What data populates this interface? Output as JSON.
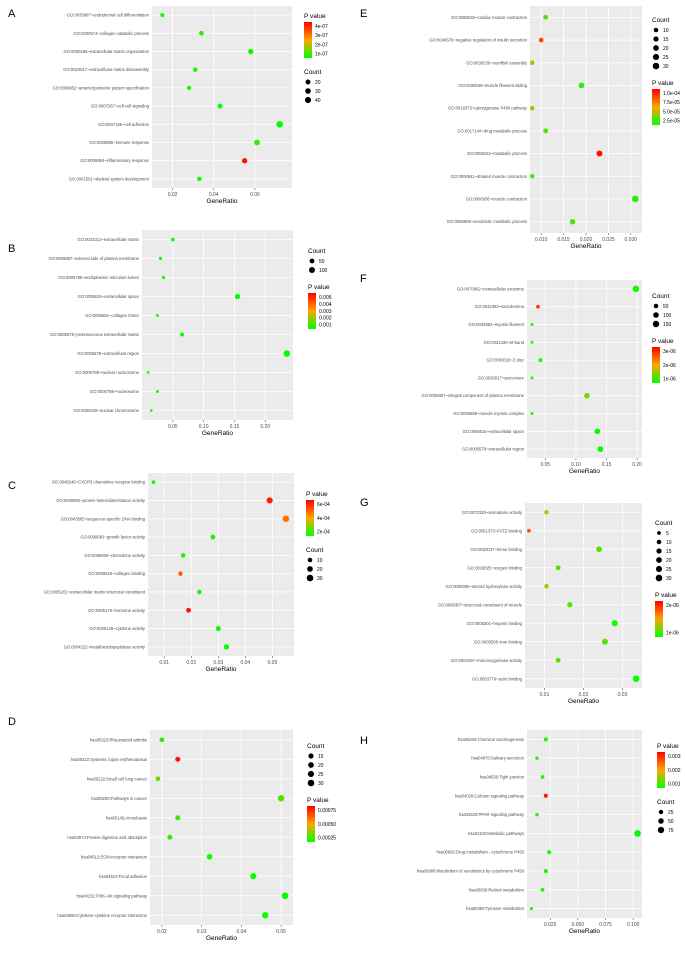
{
  "chart_data": [
    {
      "panel": "A",
      "type": "scatter",
      "categories": [
        "GO:0035987~endodermal cell differentiation",
        "GO:0030574~collagen catabolic process",
        "GO:0030198~extracellular matrix organization",
        "GO:0022617~extracellular matrix disassembly",
        "GO:0009952~anterior/posterior pattern specification",
        "GO:0007267~cell-cell signaling",
        "GO:0007155~cell adhesion",
        "GO:0006955~immune response",
        "GO:0006954~inflammatory response",
        "GO:0001501~skeletal system development"
      ],
      "x": [
        0.015,
        0.034,
        0.058,
        0.031,
        0.028,
        0.043,
        0.072,
        0.061,
        0.055,
        0.033
      ],
      "count": [
        10,
        18,
        25,
        14,
        12,
        20,
        48,
        32,
        26,
        16
      ],
      "pvalue": [
        2e-08,
        5e-08,
        1e-08,
        3e-08,
        2e-08,
        1e-08,
        1e-08,
        5e-08,
        4.2e-07,
        2e-08
      ],
      "xticks": [
        0.02,
        0.04,
        0.06
      ],
      "xlim": [
        0.01,
        0.078
      ],
      "xlabel": "GeneRatio",
      "color_legend": {
        "title": "P value",
        "ticks": [
          "4e-07",
          "3e-07",
          "2e-07",
          "1e-07"
        ],
        "min": 1e-08,
        "max": 4.5e-07
      },
      "size_legend": {
        "title": "Count",
        "values": [
          20,
          30,
          40
        ]
      },
      "legend_order": "color-first"
    },
    {
      "panel": "B",
      "type": "scatter",
      "categories": [
        "GO:0031012~extracellular matrix",
        "GO:0009897~external side of plasma membrane",
        "GO:0005788~endoplasmic reticulum lumen",
        "GO:0005615~extracellular space",
        "GO:0005581~collagen trimer",
        "GO:0005578~proteinaceous extracellular matrix",
        "GO:0005576~extracellular region",
        "GO:0000788~nuclear nucleosome",
        "GO:0000786~nucleosome",
        "GO:0000228~nuclear chromosome"
      ],
      "x": [
        0.05,
        0.03,
        0.035,
        0.155,
        0.025,
        0.065,
        0.235,
        0.01,
        0.025,
        0.015
      ],
      "count": [
        20,
        10,
        12,
        70,
        8,
        25,
        130,
        4,
        8,
        5
      ],
      "pvalue": [
        0.0003,
        0.0004,
        0.0008,
        0.0001,
        0.0012,
        0.0005,
        1e-05,
        0.0006,
        0.0008,
        0.0009
      ],
      "xticks": [
        0.05,
        0.1,
        0.15,
        0.2
      ],
      "xticklabels": [
        "0.05",
        "0.10",
        "0.15",
        "0.20"
      ],
      "xlim": [
        0.0,
        0.245
      ],
      "xlabel": "GeneRatio",
      "color_legend": {
        "title": "P value",
        "ticks": [
          "0.005",
          "0.004",
          "0.003",
          "0.002",
          "0.001"
        ],
        "min": 0.0005,
        "max": 0.0055
      },
      "size_legend": {
        "title": "Count",
        "values": [
          50,
          100
        ]
      },
      "legend_order": "size-first"
    },
    {
      "panel": "C",
      "type": "scatter",
      "categories": [
        "GO:0048248~CXCR3 chemokine receptor binding",
        "GO:0046982~protein heterodimerization activity",
        "GO:0043565~sequence-specific DNA binding",
        "GO:0008083~growth factor activity",
        "GO:0008009~chemokine activity",
        "GO:0005518~collagen binding",
        "GO:0005201~extracellular matrix structural constituent",
        "GO:0005179~hormone activity",
        "GO:0005125~cytokine activity",
        "GO:0004222~metalloendopeptidase activity"
      ],
      "x": [
        0.006,
        0.049,
        0.055,
        0.028,
        0.017,
        0.016,
        0.023,
        0.019,
        0.03,
        0.033
      ],
      "count": [
        5,
        25,
        30,
        12,
        10,
        9,
        10,
        12,
        14,
        16
      ],
      "pvalue": [
        3e-05,
        0.00062,
        0.00045,
        5e-05,
        4e-05,
        0.0005,
        4e-05,
        0.00064,
        3e-05,
        2e-05
      ],
      "xticks": [
        0.01,
        0.02,
        0.03,
        0.04,
        0.05
      ],
      "xlim": [
        0.004,
        0.058
      ],
      "xlabel": "GeneRatio",
      "color_legend": {
        "title": "P value",
        "ticks": [
          "6e-04",
          "4e-04",
          "2e-04"
        ],
        "min": 1e-05,
        "max": 0.00068
      },
      "size_legend": {
        "title": "Count",
        "values": [
          10,
          20,
          30
        ]
      },
      "legend_order": "color-first"
    },
    {
      "panel": "D",
      "type": "scatter",
      "categories": [
        "hsa05323:Rheumatoid arthritis",
        "hsa05322:Systemic lupus erythematosus",
        "hsa05222:Small cell lung cancer",
        "hsa05200:Pathways in cancer",
        "hsa05146:Amoebiasis",
        "hsa04974:Protein digestion and absorption",
        "hsa04512:ECM-receptor interaction",
        "hsa04510:Focal adhesion",
        "hsa04151:PI3K-Akt signaling pathway",
        "hsa04060:Cytokine-cytokine receptor interaction"
      ],
      "x": [
        0.02,
        0.024,
        0.019,
        0.05,
        0.024,
        0.022,
        0.032,
        0.043,
        0.051,
        0.046
      ],
      "count": [
        12,
        14,
        11,
        28,
        14,
        13,
        19,
        25,
        30,
        27
      ],
      "pvalue": [
        0.0001,
        0.00088,
        0.0002,
        0.00015,
        0.0001,
        8e-05,
        3e-05,
        2e-05,
        1e-05,
        3e-05
      ],
      "xticks": [
        0.02,
        0.03,
        0.04,
        0.05
      ],
      "xlim": [
        0.017,
        0.053
      ],
      "xlabel": "GeneRatio",
      "color_legend": {
        "title": "P value",
        "ticks": [
          "0.00075",
          "0.00050",
          "0.00025"
        ],
        "min": 1e-05,
        "max": 0.00092
      },
      "size_legend": {
        "title": "Count",
        "values": [
          15,
          20,
          25,
          30
        ]
      },
      "legend_order": "size-first"
    },
    {
      "panel": "E",
      "type": "scatter",
      "categories": [
        "GO:0060048~cardiac muscle contraction",
        "GO:0046676~negative regulation of insulin secretion",
        "GO:0030239~myofibril assembly",
        "GO:0030049~muscle filament sliding",
        "GO:0019373~epoxygenase P450 pathway",
        "GO:0017144~drug metabolic process",
        "GO:0008152~metabolic process",
        "GO:0006941~striated muscle contraction",
        "GO:0006936~muscle contraction",
        "GO:0006805~xenobiotic metabolic process"
      ],
      "x": [
        0.011,
        0.01,
        0.008,
        0.019,
        0.008,
        0.011,
        0.023,
        0.008,
        0.031,
        0.017
      ],
      "count": [
        12,
        11,
        9,
        20,
        9,
        12,
        23,
        9,
        30,
        17
      ],
      "pvalue": [
        2e-05,
        8e-05,
        3e-05,
        1e-05,
        3e-05,
        2e-05,
        9.5e-05,
        2e-05,
        1e-05,
        2e-05
      ],
      "xticks": [
        0.01,
        0.015,
        0.02,
        0.025,
        0.03
      ],
      "xticklabels": [
        "0.010",
        "0.015",
        "0.020",
        "0.025",
        "0.030"
      ],
      "xlim": [
        0.0075,
        0.0325
      ],
      "xlabel": "GeneRatio",
      "color_legend": {
        "title": "P value",
        "ticks": [
          "1.0e-04",
          "7.5e-05",
          "5.0e-05",
          "2.5e-05"
        ],
        "min": 5e-06,
        "max": 0.0001
      },
      "size_legend": {
        "title": "Count",
        "values": [
          10,
          15,
          20,
          25,
          30
        ]
      },
      "legend_order": "size-first"
    },
    {
      "panel": "F",
      "type": "scatter",
      "categories": [
        "GO:0070062~extracellular exosome",
        "GO:0042383~sarcolemma",
        "GO:0032982~myosin filament",
        "GO:0031430~M band",
        "GO:0030018~Z disc",
        "GO:0030017~sarcomere",
        "GO:0005887~integral component of plasma membrane",
        "GO:0005859~muscle myosin complex",
        "GO:0005615~extracellular space",
        "GO:0005576~extracellular region"
      ],
      "x": [
        0.198,
        0.038,
        0.028,
        0.028,
        0.042,
        0.028,
        0.118,
        0.028,
        0.135,
        0.14
      ],
      "count": [
        160,
        25,
        10,
        10,
        30,
        10,
        90,
        10,
        105,
        110
      ],
      "pvalue": [
        2.5e-07,
        2.7e-06,
        4e-07,
        4e-07,
        2.5e-07,
        4e-07,
        8e-07,
        4e-07,
        1.5e-07,
        1e-07
      ],
      "xticks": [
        0.05,
        0.1,
        0.15,
        0.2
      ],
      "xticklabels": [
        "0.05",
        "0.10",
        "0.15",
        "0.20"
      ],
      "xlim": [
        0.02,
        0.208
      ],
      "xlabel": "GeneRatio",
      "color_legend": {
        "title": "P value",
        "ticks": [
          "3e-06",
          "2e-06",
          "1e-06"
        ],
        "min": 1e-07,
        "max": 3.2e-06
      },
      "size_legend": {
        "title": "Count",
        "values": [
          50,
          100,
          150
        ]
      },
      "legend_order": "size-first"
    },
    {
      "panel": "G",
      "type": "scatter",
      "categories": [
        "GO:0070330~aromatase activity",
        "GO:0051373~FATZ binding",
        "GO:0020037~heme binding",
        "GO:0019825~oxygen binding",
        "GO:0008395~steroid hydroxylase activity",
        "GO:0008307~structural constituent of muscle",
        "GO:0008201~heparin binding",
        "GO:0005506~iron binding",
        "GO:0004497~monooxygenase activity",
        "GO:0003779~actin binding"
      ],
      "x": [
        0.0105,
        0.006,
        0.024,
        0.0135,
        0.0105,
        0.0165,
        0.028,
        0.0255,
        0.0135,
        0.0335
      ],
      "count": [
        10,
        5,
        20,
        12,
        10,
        15,
        25,
        22,
        12,
        30
      ],
      "pvalue": [
        1e-06,
        2e-06,
        5e-07,
        5e-07,
        1e-06,
        5e-07,
        2e-07,
        5e-07,
        5e-07,
        1e-07
      ],
      "xticks": [
        0.01,
        0.02,
        0.03
      ],
      "xlim": [
        0.005,
        0.035
      ],
      "xlabel": "GeneRatio",
      "color_legend": {
        "title": "P value",
        "ticks": [
          "2e-06",
          "1e-06"
        ],
        "min": 1e-07,
        "max": 2.6e-06
      },
      "size_legend": {
        "title": "Count",
        "values": [
          5,
          10,
          15,
          20,
          25,
          30
        ]
      },
      "legend_order": "size-first"
    },
    {
      "panel": "H",
      "type": "scatter",
      "categories": [
        "hsa05204:Chemical carcinogenesis",
        "hsa04970:Salivary secretion",
        "hsa04530:Tight junction",
        "hsa04020:Calcium signaling pathway",
        "hsa03320:PPAR signaling pathway",
        "hsa01100:Metabolic pathways",
        "hsa00982:Drug metabolism - cytochrome P450",
        "hsa00980:Metabolism of xenobiotics by cytochrome P450",
        "hsa00830:Retinol metabolism",
        "hsa00350:Tyrosine metabolism"
      ],
      "x": [
        0.021,
        0.013,
        0.018,
        0.021,
        0.013,
        0.104,
        0.024,
        0.021,
        0.018,
        0.008
      ],
      "count": [
        18,
        10,
        15,
        18,
        10,
        85,
        20,
        18,
        15,
        6
      ],
      "pvalue": [
        0.0002,
        0.0003,
        0.0002,
        0.0034,
        0.0003,
        2e-05,
        0.0002,
        0.0002,
        0.0002,
        0.0003
      ],
      "xticks": [
        0.025,
        0.05,
        0.075,
        0.1
      ],
      "xticklabels": [
        "0.025",
        "0.050",
        "0.075",
        "0.100"
      ],
      "xlim": [
        0.004,
        0.108
      ],
      "xlabel": "GeneRatio",
      "color_legend": {
        "title": "P value",
        "ticks": [
          "0.003",
          "0.002",
          "0.001"
        ],
        "min": 2e-05,
        "max": 0.0036
      },
      "size_legend": {
        "title": "Count",
        "values": [
          25,
          50,
          75
        ]
      },
      "legend_order": "color-first"
    }
  ]
}
